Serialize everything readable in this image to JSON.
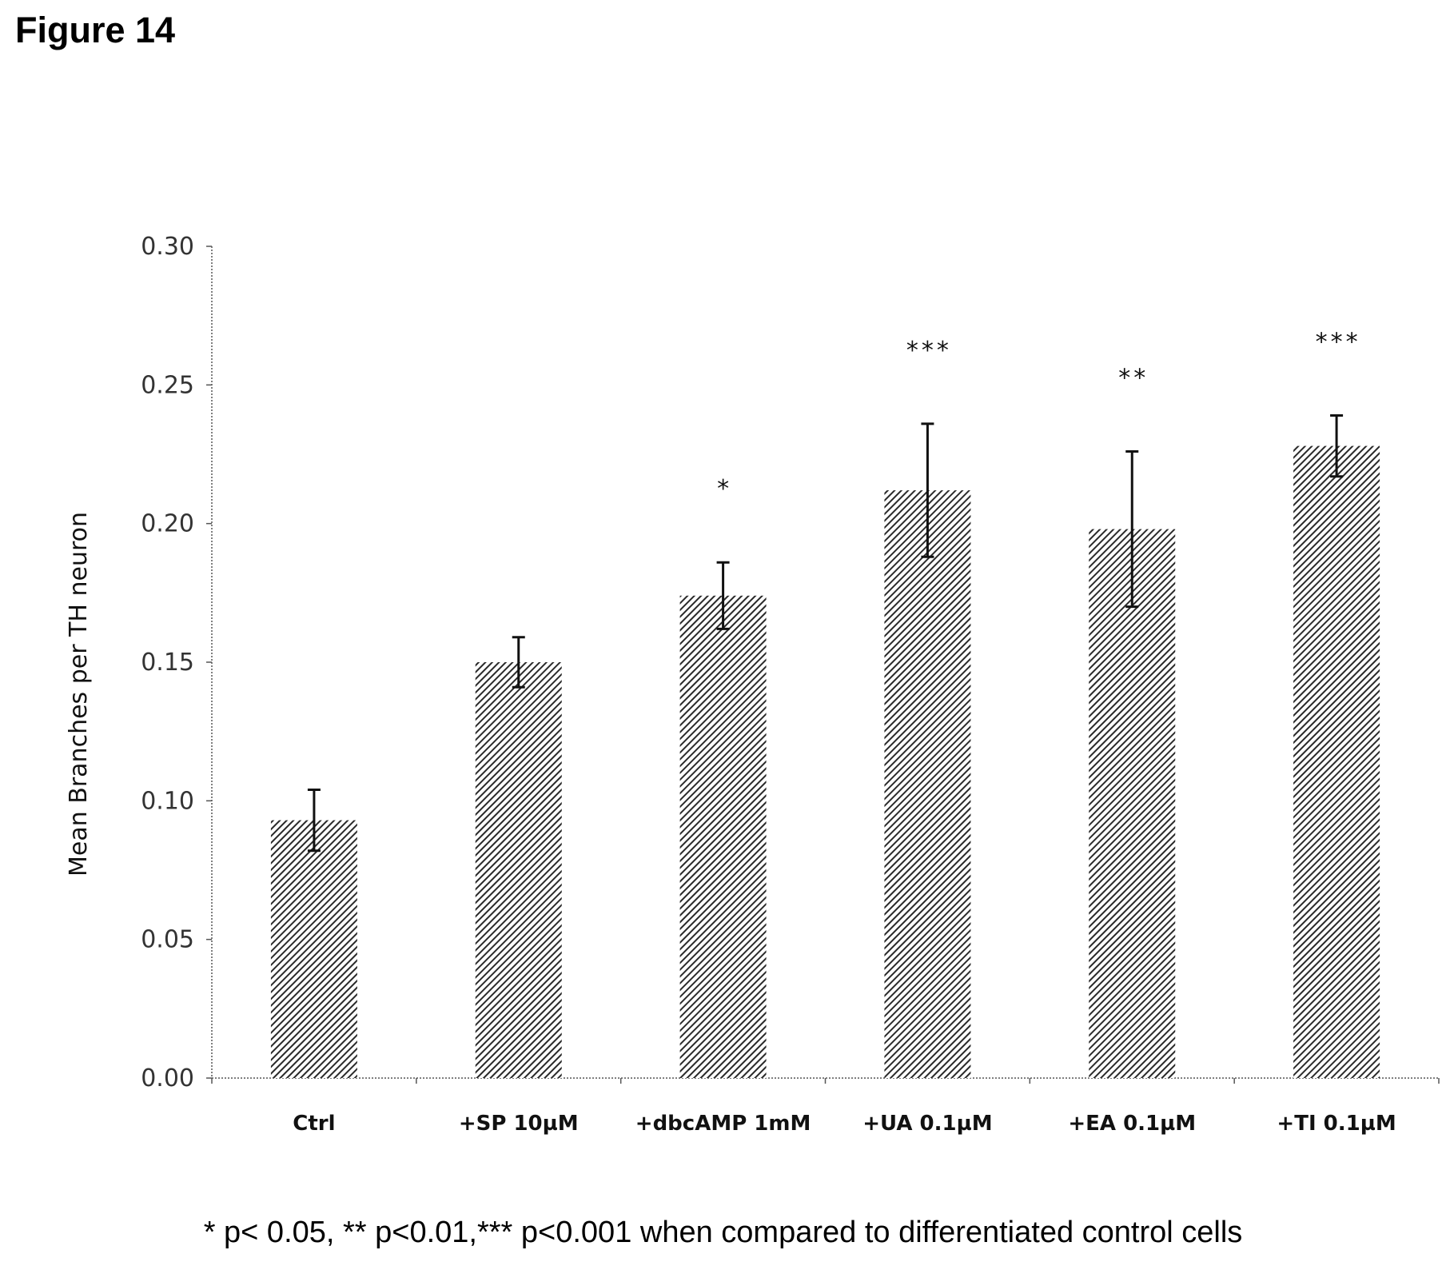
{
  "figure_label": "Figure 14",
  "footnote": "*  p< 0.05, ** p<0.01,*** p<0.001 when compared to differentiated control cells",
  "chart_data": {
    "type": "bar",
    "title": "",
    "xlabel": "",
    "ylabel": "Mean Branches per TH neuron",
    "ylim": [
      0,
      0.3
    ],
    "yticks": [
      "0.00",
      "0.05",
      "0.10",
      "0.15",
      "0.20",
      "0.25",
      "0.30"
    ],
    "grid": false,
    "bar_pattern": "diagonal-hatch",
    "bar_color": "#333333",
    "categories": [
      "Ctrl",
      "+SP 10µM",
      "+dbcAMP 1mM",
      "+UA 0.1µM",
      "+EA 0.1µM",
      "+TI 0.1µM"
    ],
    "values": [
      0.093,
      0.15,
      0.174,
      0.212,
      0.198,
      0.228
    ],
    "error": [
      0.011,
      0.009,
      0.012,
      0.024,
      0.028,
      0.011
    ],
    "significance": [
      "",
      "",
      "*",
      "***",
      "**",
      "***"
    ]
  }
}
